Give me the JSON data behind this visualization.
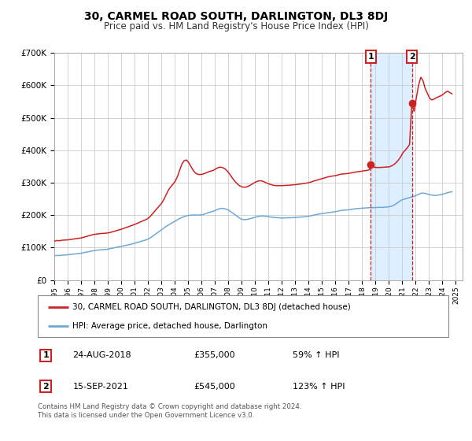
{
  "title": "30, CARMEL ROAD SOUTH, DARLINGTON, DL3 8DJ",
  "subtitle": "Price paid vs. HM Land Registry's House Price Index (HPI)",
  "title_fontsize": 10,
  "subtitle_fontsize": 8.5,
  "xlim_start": 1995.0,
  "xlim_end": 2025.5,
  "ylim_min": 0,
  "ylim_max": 700000,
  "yticks": [
    0,
    100000,
    200000,
    300000,
    400000,
    500000,
    600000,
    700000
  ],
  "ytick_labels": [
    "£0",
    "£100K",
    "£200K",
    "£300K",
    "£400K",
    "£500K",
    "£600K",
    "£700K"
  ],
  "bg_color": "#ffffff",
  "plot_bg_color": "#ffffff",
  "grid_color": "#cccccc",
  "hpi_line_color": "#6fa8d4",
  "price_line_color": "#cc2222",
  "shade_color": "#ddeeff",
  "vline_color": "#cc2222",
  "marker_color": "#cc2222",
  "annotation_box_color": "#cc2222",
  "sale1_x": 2018.65,
  "sale1_y": 355000,
  "sale1_label": "1",
  "sale2_x": 2021.71,
  "sale2_y": 545000,
  "sale2_label": "2",
  "legend_line1": "30, CARMEL ROAD SOUTH, DARLINGTON, DL3 8DJ (detached house)",
  "legend_line2": "HPI: Average price, detached house, Darlington",
  "annotation1_date": "24-AUG-2018",
  "annotation1_price": "£355,000",
  "annotation1_hpi": "59% ↑ HPI",
  "annotation2_date": "15-SEP-2021",
  "annotation2_price": "£545,000",
  "annotation2_hpi": "123% ↑ HPI",
  "footnote": "Contains HM Land Registry data © Crown copyright and database right 2024.\nThis data is licensed under the Open Government Licence v3.0.",
  "hpi_data": [
    [
      1995.04,
      75000
    ],
    [
      1995.21,
      76000
    ],
    [
      1995.38,
      75500
    ],
    [
      1995.54,
      76500
    ],
    [
      1995.71,
      77000
    ],
    [
      1995.88,
      77500
    ],
    [
      1996.04,
      78000
    ],
    [
      1996.21,
      79000
    ],
    [
      1996.38,
      79500
    ],
    [
      1996.54,
      80500
    ],
    [
      1996.71,
      81000
    ],
    [
      1996.88,
      82000
    ],
    [
      1997.04,
      83000
    ],
    [
      1997.21,
      84500
    ],
    [
      1997.38,
      86000
    ],
    [
      1997.54,
      87000
    ],
    [
      1997.71,
      88500
    ],
    [
      1997.88,
      90000
    ],
    [
      1998.04,
      91000
    ],
    [
      1998.21,
      92000
    ],
    [
      1998.38,
      93000
    ],
    [
      1998.54,
      93500
    ],
    [
      1998.71,
      94000
    ],
    [
      1998.88,
      94500
    ],
    [
      1999.04,
      95500
    ],
    [
      1999.21,
      97000
    ],
    [
      1999.38,
      98500
    ],
    [
      1999.54,
      100000
    ],
    [
      1999.71,
      101500
    ],
    [
      1999.88,
      103000
    ],
    [
      2000.04,
      104000
    ],
    [
      2000.21,
      105500
    ],
    [
      2000.38,
      107000
    ],
    [
      2000.54,
      108500
    ],
    [
      2000.71,
      110000
    ],
    [
      2000.88,
      112000
    ],
    [
      2001.04,
      114000
    ],
    [
      2001.21,
      116000
    ],
    [
      2001.38,
      118000
    ],
    [
      2001.54,
      120000
    ],
    [
      2001.71,
      122000
    ],
    [
      2001.88,
      124000
    ],
    [
      2002.04,
      127000
    ],
    [
      2002.21,
      131000
    ],
    [
      2002.38,
      136000
    ],
    [
      2002.54,
      141000
    ],
    [
      2002.71,
      146000
    ],
    [
      2002.88,
      151000
    ],
    [
      2003.04,
      156000
    ],
    [
      2003.21,
      161000
    ],
    [
      2003.38,
      166000
    ],
    [
      2003.54,
      170000
    ],
    [
      2003.71,
      174000
    ],
    [
      2003.88,
      178000
    ],
    [
      2004.04,
      182000
    ],
    [
      2004.21,
      186000
    ],
    [
      2004.38,
      190000
    ],
    [
      2004.54,
      193000
    ],
    [
      2004.71,
      196000
    ],
    [
      2004.88,
      198000
    ],
    [
      2005.04,
      199000
    ],
    [
      2005.21,
      200000
    ],
    [
      2005.38,
      200500
    ],
    [
      2005.54,
      200500
    ],
    [
      2005.71,
      200000
    ],
    [
      2005.88,
      200500
    ],
    [
      2006.04,
      201000
    ],
    [
      2006.21,
      203000
    ],
    [
      2006.38,
      205500
    ],
    [
      2006.54,
      208000
    ],
    [
      2006.71,
      210000
    ],
    [
      2006.88,
      212000
    ],
    [
      2007.04,
      215000
    ],
    [
      2007.21,
      218000
    ],
    [
      2007.38,
      220000
    ],
    [
      2007.54,
      221000
    ],
    [
      2007.71,
      220000
    ],
    [
      2007.88,
      218000
    ],
    [
      2008.04,
      215000
    ],
    [
      2008.21,
      210000
    ],
    [
      2008.38,
      205000
    ],
    [
      2008.54,
      200000
    ],
    [
      2008.71,
      195000
    ],
    [
      2008.88,
      190000
    ],
    [
      2009.04,
      187000
    ],
    [
      2009.21,
      186000
    ],
    [
      2009.38,
      186500
    ],
    [
      2009.54,
      188000
    ],
    [
      2009.71,
      190000
    ],
    [
      2009.88,
      192000
    ],
    [
      2010.04,
      194000
    ],
    [
      2010.21,
      196000
    ],
    [
      2010.38,
      197000
    ],
    [
      2010.54,
      197500
    ],
    [
      2010.71,
      197000
    ],
    [
      2010.88,
      196000
    ],
    [
      2011.04,
      195000
    ],
    [
      2011.21,
      194000
    ],
    [
      2011.38,
      193000
    ],
    [
      2011.54,
      192500
    ],
    [
      2011.71,
      192000
    ],
    [
      2011.88,
      191500
    ],
    [
      2012.04,
      191000
    ],
    [
      2012.21,
      191500
    ],
    [
      2012.38,
      192000
    ],
    [
      2012.54,
      192000
    ],
    [
      2012.71,
      192000
    ],
    [
      2012.88,
      192500
    ],
    [
      2013.04,
      193000
    ],
    [
      2013.21,
      193500
    ],
    [
      2013.38,
      194000
    ],
    [
      2013.54,
      194500
    ],
    [
      2013.71,
      195000
    ],
    [
      2013.88,
      196000
    ],
    [
      2014.04,
      197000
    ],
    [
      2014.21,
      198500
    ],
    [
      2014.38,
      200000
    ],
    [
      2014.54,
      201500
    ],
    [
      2014.71,
      203000
    ],
    [
      2014.88,
      204000
    ],
    [
      2015.04,
      205000
    ],
    [
      2015.21,
      206000
    ],
    [
      2015.38,
      207000
    ],
    [
      2015.54,
      208000
    ],
    [
      2015.71,
      209000
    ],
    [
      2015.88,
      210000
    ],
    [
      2016.04,
      211000
    ],
    [
      2016.21,
      212500
    ],
    [
      2016.38,
      214000
    ],
    [
      2016.54,
      215000
    ],
    [
      2016.71,
      215500
    ],
    [
      2016.88,
      216000
    ],
    [
      2017.04,
      217000
    ],
    [
      2017.21,
      218000
    ],
    [
      2017.38,
      219000
    ],
    [
      2017.54,
      220000
    ],
    [
      2017.71,
      220500
    ],
    [
      2017.88,
      221000
    ],
    [
      2018.04,
      221500
    ],
    [
      2018.21,
      222000
    ],
    [
      2018.38,
      222500
    ],
    [
      2018.54,
      223000
    ],
    [
      2018.71,
      223000
    ],
    [
      2018.88,
      223000
    ],
    [
      2019.04,
      223500
    ],
    [
      2019.21,
      224000
    ],
    [
      2019.38,
      224000
    ],
    [
      2019.54,
      224000
    ],
    [
      2019.71,
      224500
    ],
    [
      2019.88,
      225000
    ],
    [
      2020.04,
      226000
    ],
    [
      2020.21,
      228000
    ],
    [
      2020.38,
      231000
    ],
    [
      2020.54,
      235000
    ],
    [
      2020.71,
      240000
    ],
    [
      2020.88,
      245000
    ],
    [
      2021.04,
      248000
    ],
    [
      2021.21,
      250000
    ],
    [
      2021.38,
      252000
    ],
    [
      2021.54,
      254000
    ],
    [
      2021.71,
      256000
    ],
    [
      2021.88,
      258000
    ],
    [
      2022.04,
      261000
    ],
    [
      2022.21,
      264000
    ],
    [
      2022.38,
      267000
    ],
    [
      2022.54,
      268000
    ],
    [
      2022.71,
      267000
    ],
    [
      2022.88,
      265000
    ],
    [
      2023.04,
      263000
    ],
    [
      2023.21,
      262000
    ],
    [
      2023.38,
      261000
    ],
    [
      2023.54,
      261000
    ],
    [
      2023.71,
      262000
    ],
    [
      2023.88,
      263000
    ],
    [
      2024.04,
      265000
    ],
    [
      2024.21,
      267000
    ],
    [
      2024.38,
      269000
    ],
    [
      2024.54,
      271000
    ],
    [
      2024.71,
      272000
    ]
  ],
  "price_data": [
    [
      1995.04,
      120000
    ],
    [
      1995.21,
      122000
    ],
    [
      1995.38,
      121000
    ],
    [
      1995.54,
      122500
    ],
    [
      1995.71,
      123000
    ],
    [
      1995.88,
      123500
    ],
    [
      1996.04,
      124000
    ],
    [
      1996.21,
      125000
    ],
    [
      1996.38,
      126000
    ],
    [
      1996.54,
      127000
    ],
    [
      1996.71,
      128000
    ],
    [
      1996.88,
      129000
    ],
    [
      1997.04,
      130000
    ],
    [
      1997.21,
      132000
    ],
    [
      1997.38,
      134000
    ],
    [
      1997.54,
      136000
    ],
    [
      1997.71,
      138000
    ],
    [
      1997.88,
      140000
    ],
    [
      1998.04,
      141000
    ],
    [
      1998.21,
      142000
    ],
    [
      1998.38,
      143000
    ],
    [
      1998.54,
      143500
    ],
    [
      1998.71,
      144000
    ],
    [
      1998.88,
      144500
    ],
    [
      1999.04,
      145500
    ],
    [
      1999.21,
      147000
    ],
    [
      1999.38,
      149000
    ],
    [
      1999.54,
      151000
    ],
    [
      1999.71,
      153000
    ],
    [
      1999.88,
      155000
    ],
    [
      2000.04,
      157000
    ],
    [
      2000.21,
      159500
    ],
    [
      2000.38,
      162000
    ],
    [
      2000.54,
      164500
    ],
    [
      2000.71,
      167000
    ],
    [
      2000.88,
      169500
    ],
    [
      2001.04,
      172000
    ],
    [
      2001.21,
      175000
    ],
    [
      2001.38,
      178000
    ],
    [
      2001.54,
      181000
    ],
    [
      2001.71,
      184000
    ],
    [
      2001.88,
      187000
    ],
    [
      2002.04,
      191000
    ],
    [
      2002.21,
      198000
    ],
    [
      2002.38,
      206000
    ],
    [
      2002.54,
      214000
    ],
    [
      2002.71,
      222000
    ],
    [
      2002.88,
      230000
    ],
    [
      2003.04,
      238000
    ],
    [
      2003.21,
      250000
    ],
    [
      2003.38,
      265000
    ],
    [
      2003.54,
      278000
    ],
    [
      2003.71,
      288000
    ],
    [
      2003.88,
      296000
    ],
    [
      2004.04,
      305000
    ],
    [
      2004.21,
      320000
    ],
    [
      2004.38,
      340000
    ],
    [
      2004.54,
      358000
    ],
    [
      2004.71,
      368000
    ],
    [
      2004.88,
      370000
    ],
    [
      2005.04,
      362000
    ],
    [
      2005.21,
      350000
    ],
    [
      2005.38,
      338000
    ],
    [
      2005.54,
      330000
    ],
    [
      2005.71,
      326000
    ],
    [
      2005.88,
      325000
    ],
    [
      2006.04,
      326000
    ],
    [
      2006.21,
      328000
    ],
    [
      2006.38,
      331000
    ],
    [
      2006.54,
      334000
    ],
    [
      2006.71,
      336000
    ],
    [
      2006.88,
      338000
    ],
    [
      2007.04,
      342000
    ],
    [
      2007.21,
      346000
    ],
    [
      2007.38,
      348000
    ],
    [
      2007.54,
      347000
    ],
    [
      2007.71,
      344000
    ],
    [
      2007.88,
      338000
    ],
    [
      2008.04,
      330000
    ],
    [
      2008.21,
      320000
    ],
    [
      2008.38,
      310000
    ],
    [
      2008.54,
      302000
    ],
    [
      2008.71,
      295000
    ],
    [
      2008.88,
      290000
    ],
    [
      2009.04,
      287000
    ],
    [
      2009.21,
      286000
    ],
    [
      2009.38,
      287000
    ],
    [
      2009.54,
      290000
    ],
    [
      2009.71,
      294000
    ],
    [
      2009.88,
      298000
    ],
    [
      2010.04,
      302000
    ],
    [
      2010.21,
      305000
    ],
    [
      2010.38,
      306000
    ],
    [
      2010.54,
      305000
    ],
    [
      2010.71,
      302000
    ],
    [
      2010.88,
      299000
    ],
    [
      2011.04,
      296000
    ],
    [
      2011.21,
      294000
    ],
    [
      2011.38,
      292000
    ],
    [
      2011.54,
      291000
    ],
    [
      2011.71,
      291000
    ],
    [
      2011.88,
      291000
    ],
    [
      2012.04,
      291000
    ],
    [
      2012.21,
      291500
    ],
    [
      2012.38,
      292000
    ],
    [
      2012.54,
      292000
    ],
    [
      2012.71,
      293000
    ],
    [
      2012.88,
      293500
    ],
    [
      2013.04,
      294000
    ],
    [
      2013.21,
      295000
    ],
    [
      2013.38,
      296000
    ],
    [
      2013.54,
      297000
    ],
    [
      2013.71,
      298000
    ],
    [
      2013.88,
      299000
    ],
    [
      2014.04,
      300500
    ],
    [
      2014.21,
      302500
    ],
    [
      2014.38,
      305000
    ],
    [
      2014.54,
      307000
    ],
    [
      2014.71,
      309000
    ],
    [
      2014.88,
      311000
    ],
    [
      2015.04,
      313000
    ],
    [
      2015.21,
      315000
    ],
    [
      2015.38,
      317000
    ],
    [
      2015.54,
      319000
    ],
    [
      2015.71,
      320000
    ],
    [
      2015.88,
      321000
    ],
    [
      2016.04,
      322000
    ],
    [
      2016.21,
      324000
    ],
    [
      2016.38,
      326000
    ],
    [
      2016.54,
      327000
    ],
    [
      2016.71,
      327500
    ],
    [
      2016.88,
      328000
    ],
    [
      2017.04,
      329000
    ],
    [
      2017.21,
      330500
    ],
    [
      2017.38,
      332000
    ],
    [
      2017.54,
      333000
    ],
    [
      2017.71,
      334000
    ],
    [
      2017.88,
      335000
    ],
    [
      2018.04,
      336000
    ],
    [
      2018.21,
      337000
    ],
    [
      2018.38,
      338000
    ],
    [
      2018.54,
      340000
    ],
    [
      2018.65,
      355000
    ],
    [
      2018.71,
      350000
    ],
    [
      2018.88,
      348000
    ],
    [
      2019.04,
      347000
    ],
    [
      2019.21,
      347000
    ],
    [
      2019.38,
      347000
    ],
    [
      2019.54,
      347500
    ],
    [
      2019.71,
      348000
    ],
    [
      2019.88,
      348500
    ],
    [
      2020.04,
      349000
    ],
    [
      2020.21,
      352000
    ],
    [
      2020.38,
      356000
    ],
    [
      2020.54,
      362000
    ],
    [
      2020.71,
      370000
    ],
    [
      2020.88,
      380000
    ],
    [
      2021.04,
      392000
    ],
    [
      2021.21,
      400000
    ],
    [
      2021.38,
      408000
    ],
    [
      2021.54,
      418000
    ],
    [
      2021.71,
      545000
    ],
    [
      2021.88,
      520000
    ],
    [
      2022.04,
      560000
    ],
    [
      2022.21,
      600000
    ],
    [
      2022.38,
      625000
    ],
    [
      2022.54,
      615000
    ],
    [
      2022.71,
      590000
    ],
    [
      2022.88,
      575000
    ],
    [
      2023.04,
      560000
    ],
    [
      2023.21,
      555000
    ],
    [
      2023.38,
      558000
    ],
    [
      2023.54,
      562000
    ],
    [
      2023.71,
      565000
    ],
    [
      2023.88,
      568000
    ],
    [
      2024.04,
      572000
    ],
    [
      2024.21,
      578000
    ],
    [
      2024.38,
      582000
    ],
    [
      2024.54,
      578000
    ],
    [
      2024.71,
      574000
    ]
  ]
}
